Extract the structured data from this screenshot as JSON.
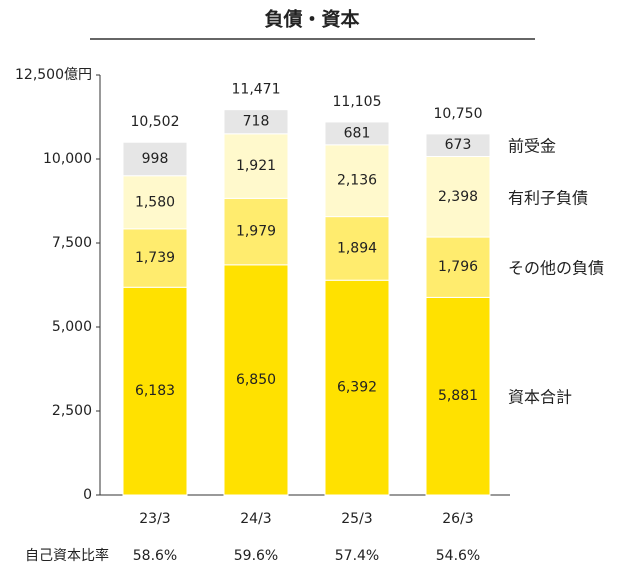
{
  "chart_data": {
    "type": "stacked_bar",
    "title": "負債・資本",
    "categories": [
      "23/3",
      "24/3",
      "25/3",
      "26/3"
    ],
    "series": [
      {
        "name": "資本合計",
        "color": "#FFE100",
        "values": [
          6183,
          6850,
          6392,
          5881
        ],
        "value_labels": [
          "6,183",
          "6,850",
          "6,392",
          "5,881"
        ]
      },
      {
        "name": "その他の負債",
        "color": "#FFEC6E",
        "values": [
          1739,
          1979,
          1894,
          1796
        ],
        "value_labels": [
          "1,739",
          "1,979",
          "1,894",
          "1,796"
        ]
      },
      {
        "name": "有利子負債",
        "color": "#FFF9CC",
        "values": [
          1580,
          1921,
          2136,
          2398
        ],
        "value_labels": [
          "1,580",
          "1,921",
          "2,136",
          "2,398"
        ]
      },
      {
        "name": "前受金",
        "color": "#E6E6E6",
        "values": [
          998,
          718,
          681,
          673
        ],
        "value_labels": [
          "998",
          "718",
          "681",
          "673"
        ]
      }
    ],
    "totals": [
      10502,
      11471,
      11105,
      10750
    ],
    "total_labels": [
      "10,502",
      "11,471",
      "11,105",
      "10,750"
    ],
    "ylim": [
      0,
      12500
    ],
    "yticks": [
      0,
      {
        "value": 2500,
        "label": "2,500"
      },
      {
        "value": 5000,
        "label": "5,000"
      },
      {
        "value": 7500,
        "label": "7,500"
      },
      {
        "value": 10000,
        "label": "10,000"
      },
      {
        "value": 12500,
        "label": "12,500億円"
      }
    ],
    "equity_ratio": {
      "label": "自己資本比率",
      "values": [
        58.6,
        59.6,
        57.4,
        54.6
      ],
      "value_labels": [
        "58.6%",
        "59.6%",
        "57.4%",
        "54.6%"
      ]
    }
  }
}
